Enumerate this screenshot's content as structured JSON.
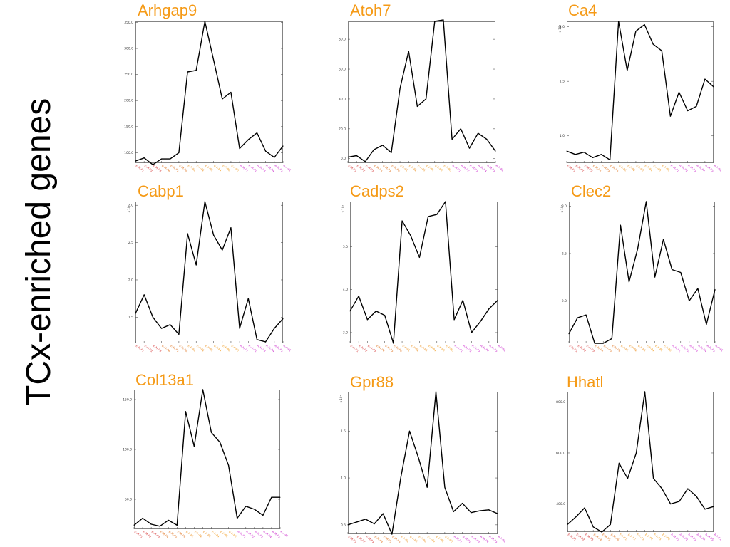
{
  "side_title": "TCx-enriched genes",
  "colors": {
    "title": "#f59a16",
    "line": "#000000",
    "frame": "#666666",
    "tick_palette": [
      "#d73c3c",
      "#e17a2a",
      "#ee9a33",
      "#f1a02a",
      "#d646d6",
      "#cc33cc"
    ]
  },
  "x_labels": [
    "E-M-P1",
    "E-M-P2",
    "E-M-P3",
    "E-M-P4",
    "E-M-P5",
    "E-M-P6",
    "E-F-P1",
    "E-F-P2",
    "E-F-P3",
    "E-F-P4",
    "E-F-P5",
    "E-F-P6",
    "A-M-P1",
    "A-M-P2",
    "A-M-P3",
    "A-M-P4",
    "A-M-P5",
    "A-F-P1"
  ],
  "chart_data": [
    {
      "type": "line",
      "title": "Arhgap9",
      "y_ticks": [
        "350.0",
        "300.0",
        "250.0",
        "200.0",
        "150.0",
        "100.0"
      ],
      "ylim": [
        80,
        352
      ],
      "x": [
        1,
        2,
        3,
        4,
        5,
        6,
        7,
        8,
        9,
        10,
        11,
        12,
        13,
        14,
        15,
        16,
        17,
        18
      ],
      "values": [
        84,
        90,
        77,
        88,
        88,
        100,
        255,
        258,
        352,
        278,
        203,
        216,
        108,
        125,
        138,
        103,
        91,
        113
      ],
      "exponent": ""
    },
    {
      "type": "line",
      "title": "Atoh7",
      "y_ticks": [
        "80.0",
        "60.0",
        "40.0",
        "20.0",
        "0.0"
      ],
      "ylim": [
        -3,
        92
      ],
      "x": [
        1,
        2,
        3,
        4,
        5,
        6,
        7,
        8,
        9,
        10,
        11,
        12,
        13,
        14,
        15,
        16,
        17,
        18
      ],
      "values": [
        1,
        2,
        -2,
        6,
        9,
        4,
        47,
        72,
        35,
        40,
        92,
        93,
        13,
        20,
        7,
        17,
        13,
        5
      ],
      "exponent": ""
    },
    {
      "type": "line",
      "title": "Ca4",
      "y_ticks": [
        "2.0",
        "1.5",
        "1.0"
      ],
      "ylim": [
        0.75,
        2.05
      ],
      "x": [
        1,
        2,
        3,
        4,
        5,
        6,
        7,
        8,
        9,
        10,
        11,
        12,
        13,
        14,
        15,
        16,
        17,
        18
      ],
      "values": [
        0.86,
        0.83,
        0.85,
        0.8,
        0.83,
        0.78,
        2.05,
        1.6,
        1.96,
        2.02,
        1.84,
        1.78,
        1.18,
        1.4,
        1.23,
        1.27,
        1.52,
        1.45
      ],
      "exponent": "x 10⁴"
    },
    {
      "type": "line",
      "title": "Cabp1",
      "y_ticks": [
        "3.0",
        "2.5",
        "2.0",
        "1.5"
      ],
      "ylim": [
        1.15,
        3.05
      ],
      "x": [
        1,
        2,
        3,
        4,
        5,
        6,
        7,
        8,
        9,
        10,
        11,
        12,
        13,
        14,
        15,
        16,
        17,
        18
      ],
      "values": [
        1.55,
        1.8,
        1.5,
        1.35,
        1.4,
        1.27,
        2.62,
        2.2,
        3.05,
        2.6,
        2.4,
        2.7,
        1.35,
        1.75,
        1.2,
        1.17,
        1.35,
        1.48
      ],
      "exponent": "x 10⁴"
    },
    {
      "type": "line",
      "title": "Cadps2",
      "y_ticks": [
        "5.0",
        "4.0",
        "3.0"
      ],
      "ylim": [
        2.75,
        6.05
      ],
      "x": [
        1,
        2,
        3,
        4,
        5,
        6,
        7,
        8,
        9,
        10,
        11,
        12,
        13,
        14,
        15,
        16,
        17,
        18
      ],
      "values": [
        3.5,
        3.85,
        3.3,
        3.5,
        3.4,
        2.75,
        5.6,
        5.25,
        4.75,
        5.7,
        5.75,
        6.05,
        3.3,
        3.75,
        3.0,
        3.25,
        3.55,
        3.75
      ],
      "exponent": "x 10³"
    },
    {
      "type": "line",
      "title": "Clec2",
      "y_ticks": [
        "3.0",
        "2.5",
        "2.0"
      ],
      "ylim": [
        1.55,
        3.05
      ],
      "x": [
        1,
        2,
        3,
        4,
        5,
        6,
        7,
        8,
        9,
        10,
        11,
        12,
        13,
        14,
        15,
        16,
        17,
        18
      ],
      "values": [
        1.65,
        1.82,
        1.85,
        1.55,
        1.55,
        1.6,
        2.8,
        2.2,
        2.55,
        3.05,
        2.25,
        2.65,
        2.33,
        2.3,
        2.0,
        2.13,
        1.75,
        2.12
      ],
      "exponent": "x 10⁴"
    },
    {
      "type": "line",
      "title": "Col13a1",
      "y_ticks": [
        "150.0",
        "100.0",
        "50.0"
      ],
      "ylim": [
        20,
        160
      ],
      "x": [
        1,
        2,
        3,
        4,
        5,
        6,
        7,
        8,
        9,
        10,
        11,
        12,
        13,
        14,
        15,
        16,
        17,
        18
      ],
      "values": [
        24,
        31,
        25,
        23,
        29,
        24,
        138,
        103,
        160,
        117,
        107,
        84,
        31,
        43,
        40,
        34,
        52,
        52
      ],
      "exponent": ""
    },
    {
      "type": "line",
      "title": "Gpr88",
      "y_ticks": [
        "1.5",
        "1.0",
        "0.5"
      ],
      "ylim": [
        0.4,
        1.92
      ],
      "x": [
        1,
        2,
        3,
        4,
        5,
        6,
        7,
        8,
        9,
        10,
        11,
        12,
        13,
        14,
        15,
        16,
        17,
        18
      ],
      "values": [
        0.5,
        0.53,
        0.56,
        0.51,
        0.62,
        0.4,
        1.0,
        1.5,
        1.22,
        0.9,
        1.92,
        0.9,
        0.64,
        0.73,
        0.63,
        0.65,
        0.66,
        0.62
      ],
      "exponent": "x 10³"
    },
    {
      "type": "line",
      "title": "Hhatl",
      "y_ticks": [
        "800.0",
        "600.0",
        "400.0"
      ],
      "ylim": [
        290,
        840
      ],
      "x": [
        1,
        2,
        3,
        4,
        5,
        6,
        7,
        8,
        9,
        10,
        11,
        12,
        13,
        14,
        15,
        16,
        17,
        18
      ],
      "values": [
        320,
        350,
        385,
        310,
        290,
        320,
        560,
        500,
        600,
        840,
        500,
        460,
        400,
        410,
        460,
        430,
        380,
        390
      ],
      "exponent": ""
    }
  ]
}
